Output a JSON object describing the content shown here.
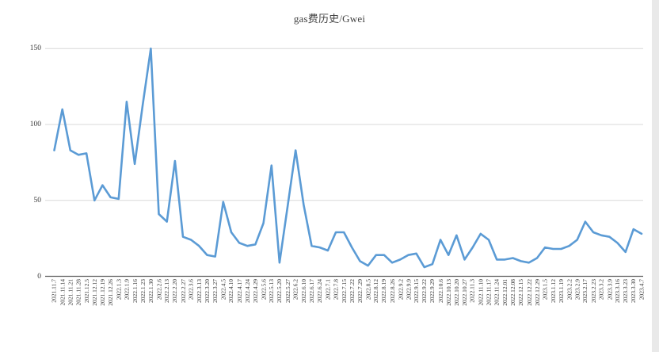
{
  "chart_data": {
    "type": "line",
    "title": "gas费历史/Gwei",
    "xlabel": "",
    "ylabel": "",
    "ylim": [
      0,
      150
    ],
    "yticks": [
      0,
      50,
      100,
      150
    ],
    "grid": "on",
    "legend": "none",
    "x": [
      "2021.11.7",
      "2021.11.14",
      "2021.11.21",
      "2021.11.28",
      "2021.12.5",
      "2021.12.12",
      "2021.12.19",
      "2021.12.26",
      "2022.1.3",
      "2022.1.9",
      "2022.1.16",
      "2022.1.23",
      "2022.1.30",
      "2022.2.6",
      "2022.2.13",
      "2022.2.20",
      "2022.2.27",
      "2022.3.6",
      "2022.3.13",
      "2022.3.20",
      "2022.3.27",
      "2022.4.5",
      "2022.4.10",
      "2022.4.17",
      "2022.4.24",
      "2022.4.29",
      "2022.5.6",
      "2022.5.13",
      "2022.5.20",
      "2022.5.27",
      "2022.6.2",
      "2022.6.10",
      "2022.6.17",
      "2022.6.24",
      "2022.7.1",
      "2022.7.8",
      "2022.7.15",
      "2022.7.22",
      "2022.7.29",
      "2022.8.5",
      "2022.8.12",
      "2022.8.19",
      "2022.8.26",
      "2022.9.2",
      "2022.9.9",
      "2022.9.15",
      "2022.9.22",
      "2022.9.29",
      "2022.10.6",
      "2022.10.13",
      "2022.10.20",
      "2022.10.27",
      "2022.11.3",
      "2022.11.10",
      "2022.11.17",
      "2022.11.24",
      "2022.12.01",
      "2022.12.08",
      "2022.12.15",
      "2022.12.22",
      "2022.12.29",
      "2023.1.5",
      "2023.1.12",
      "2023.1.19",
      "2023.2.2",
      "2023.2.9",
      "2023.2.17",
      "2023.2.23",
      "2023.3.2",
      "2023.3.9",
      "2023.3.16",
      "2023.3.23",
      "2023.3.30",
      "2023.4.7"
    ],
    "values": [
      83,
      110,
      83,
      80,
      81,
      50,
      60,
      52,
      51,
      115,
      74,
      113,
      150,
      41,
      36,
      76,
      26,
      24,
      20,
      14,
      13,
      49,
      29,
      22,
      20,
      21,
      35,
      73,
      9,
      46,
      83,
      47,
      20,
      19,
      17,
      29,
      29,
      19,
      10,
      7,
      14,
      14,
      9,
      11,
      14,
      15,
      6,
      8,
      24,
      14,
      27,
      11,
      19,
      28,
      24,
      11,
      11,
      12,
      10,
      9,
      12,
      19,
      18,
      18,
      20,
      24,
      36,
      29,
      27,
      26,
      22,
      16,
      31,
      28
    ],
    "colors": {
      "line": "#5B9BD5",
      "gridline": "#D9D9D9",
      "axis": "#595959",
      "label_text": "#3A3A3A",
      "title_text": "#404040",
      "background": "#FFFFFF"
    }
  }
}
